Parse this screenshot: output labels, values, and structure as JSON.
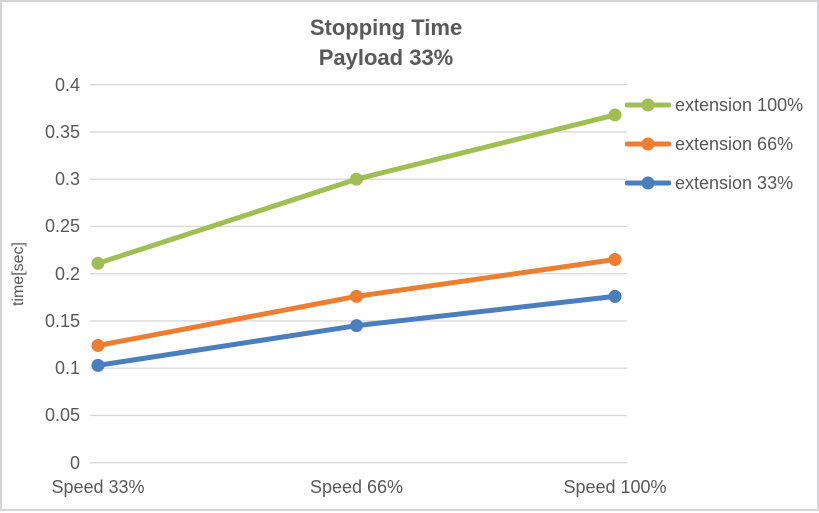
{
  "chart_data": {
    "type": "line",
    "title": "Stopping Time",
    "subtitle": "Payload 33%",
    "ylabel": "time[sec]",
    "categories": [
      "Speed 33%",
      "Speed 66%",
      "Speed 100%"
    ],
    "series": [
      {
        "name": "extension 100%",
        "color": "#9fbf54",
        "values": [
          0.211,
          0.3,
          0.368
        ]
      },
      {
        "name": "extension 66%",
        "color": "#ed7d31",
        "values": [
          0.124,
          0.176,
          0.215
        ]
      },
      {
        "name": "extension 33%",
        "color": "#4a7ebd",
        "values": [
          0.103,
          0.145,
          0.176
        ]
      }
    ],
    "ylim": [
      0,
      0.4
    ],
    "ytick_step": 0.05,
    "ytick_labels": [
      "0",
      "0.05",
      "0.1",
      "0.15",
      "0.2",
      "0.25",
      "0.3",
      "0.35",
      "0.4"
    ],
    "grid": true,
    "legend_position": "right",
    "colors": {
      "text": "#595959",
      "gridline": "#d9d9d9",
      "border": "#d5d5d8",
      "background": "#ffffff"
    }
  }
}
